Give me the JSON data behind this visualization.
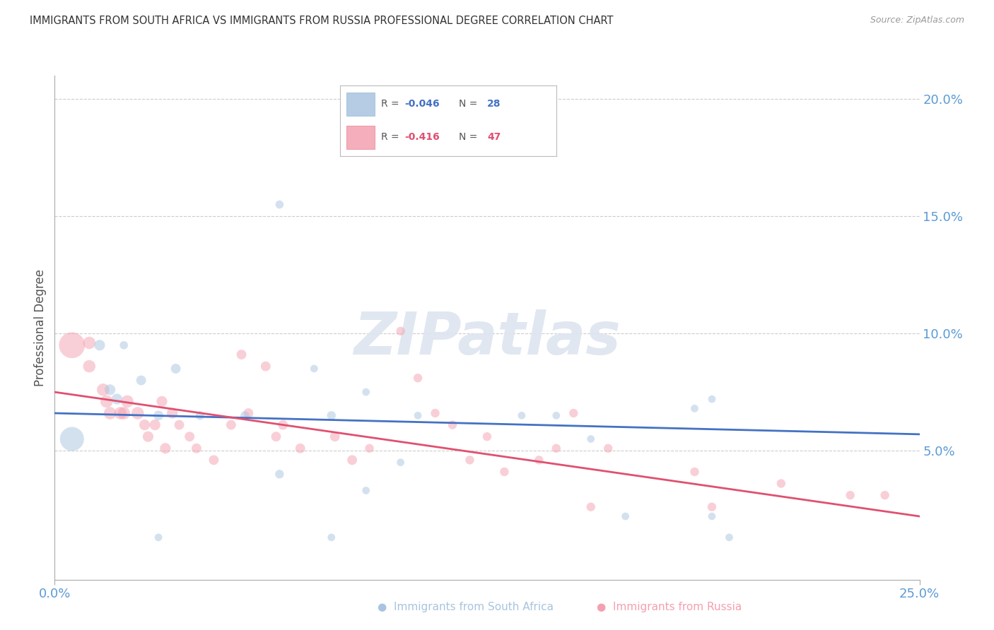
{
  "title": "IMMIGRANTS FROM SOUTH AFRICA VS IMMIGRANTS FROM RUSSIA PROFESSIONAL DEGREE CORRELATION CHART",
  "source": "Source: ZipAtlas.com",
  "ylabel": "Professional Degree",
  "xlim": [
    0.0,
    0.25
  ],
  "ylim": [
    -0.005,
    0.21
  ],
  "blue_scatter_x": [
    0.02,
    0.065,
    0.035,
    0.013,
    0.016,
    0.018,
    0.025,
    0.03,
    0.042,
    0.005,
    0.055,
    0.08,
    0.065,
    0.1,
    0.075,
    0.145,
    0.19,
    0.195,
    0.19,
    0.185,
    0.135,
    0.155,
    0.165,
    0.105,
    0.09,
    0.09,
    0.08,
    0.03
  ],
  "blue_scatter_y": [
    0.095,
    0.155,
    0.085,
    0.095,
    0.076,
    0.072,
    0.08,
    0.065,
    0.065,
    0.055,
    0.065,
    0.065,
    0.04,
    0.045,
    0.085,
    0.065,
    0.072,
    0.013,
    0.022,
    0.068,
    0.065,
    0.055,
    0.022,
    0.065,
    0.033,
    0.075,
    0.013,
    0.013
  ],
  "blue_scatter_size": [
    70,
    70,
    100,
    120,
    120,
    120,
    100,
    100,
    80,
    600,
    80,
    80,
    80,
    60,
    60,
    60,
    60,
    60,
    60,
    60,
    60,
    60,
    60,
    60,
    60,
    60,
    60,
    60
  ],
  "pink_scatter_x": [
    0.005,
    0.01,
    0.01,
    0.014,
    0.015,
    0.016,
    0.019,
    0.02,
    0.021,
    0.024,
    0.026,
    0.027,
    0.029,
    0.031,
    0.032,
    0.034,
    0.036,
    0.039,
    0.041,
    0.046,
    0.051,
    0.054,
    0.056,
    0.061,
    0.064,
    0.066,
    0.071,
    0.081,
    0.086,
    0.091,
    0.1,
    0.105,
    0.11,
    0.115,
    0.12,
    0.125,
    0.13,
    0.14,
    0.145,
    0.15,
    0.155,
    0.16,
    0.185,
    0.19,
    0.21,
    0.23,
    0.24
  ],
  "pink_scatter_y": [
    0.095,
    0.096,
    0.086,
    0.076,
    0.071,
    0.066,
    0.066,
    0.066,
    0.071,
    0.066,
    0.061,
    0.056,
    0.061,
    0.071,
    0.051,
    0.066,
    0.061,
    0.056,
    0.051,
    0.046,
    0.061,
    0.091,
    0.066,
    0.086,
    0.056,
    0.061,
    0.051,
    0.056,
    0.046,
    0.051,
    0.101,
    0.081,
    0.066,
    0.061,
    0.046,
    0.056,
    0.041,
    0.046,
    0.051,
    0.066,
    0.026,
    0.051,
    0.041,
    0.026,
    0.036,
    0.031,
    0.031
  ],
  "pink_scatter_size": [
    700,
    160,
    160,
    160,
    160,
    160,
    160,
    160,
    160,
    160,
    120,
    120,
    120,
    120,
    120,
    120,
    100,
    100,
    100,
    100,
    100,
    100,
    100,
    100,
    100,
    100,
    100,
    100,
    100,
    80,
    80,
    80,
    80,
    80,
    80,
    80,
    80,
    80,
    80,
    80,
    80,
    80,
    80,
    80,
    80,
    80,
    80
  ],
  "blue_line_x": [
    0.0,
    0.25
  ],
  "blue_line_y": [
    0.066,
    0.057
  ],
  "pink_line_x": [
    0.0,
    0.25
  ],
  "pink_line_y": [
    0.075,
    0.022
  ],
  "scatter_alpha": 0.5,
  "grid_color": "#cccccc",
  "grid_linestyle": "--",
  "blue_color": "#a8c4e0",
  "pink_color": "#f4a0b0",
  "blue_line_color": "#4472c4",
  "pink_line_color": "#e05070",
  "axis_tick_color": "#5b9bd5",
  "ylabel_color": "#555555",
  "title_color": "#333333",
  "source_color": "#999999",
  "watermark_color": "#dde5f0",
  "watermark_text": "ZIPatlas",
  "legend_R1": "-0.046",
  "legend_N1": "28",
  "legend_R2": "-0.416",
  "legend_N2": "47",
  "legend_label1": "Immigrants from South Africa",
  "legend_label2": "Immigrants from Russia",
  "yticks": [
    0.05,
    0.1,
    0.15,
    0.2
  ],
  "ytick_labels": [
    "5.0%",
    "10.0%",
    "15.0%",
    "20.0%"
  ],
  "xticks": [
    0.0,
    0.25
  ],
  "xtick_labels": [
    "0.0%",
    "25.0%"
  ],
  "background_color": "#ffffff"
}
